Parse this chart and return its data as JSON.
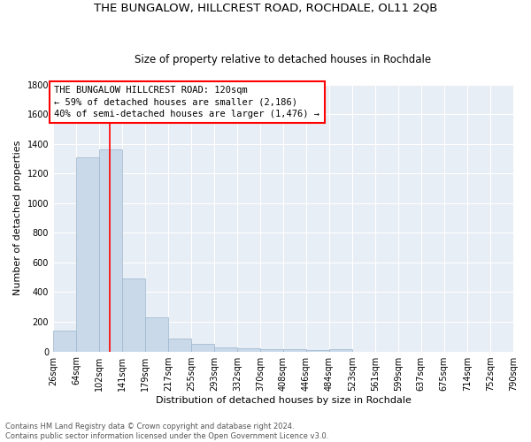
{
  "title": "THE BUNGALOW, HILLCREST ROAD, ROCHDALE, OL11 2QB",
  "subtitle": "Size of property relative to detached houses in Rochdale",
  "xlabel": "Distribution of detached houses by size in Rochdale",
  "ylabel": "Number of detached properties",
  "footnote1": "Contains HM Land Registry data © Crown copyright and database right 2024.",
  "footnote2": "Contains public sector information licensed under the Open Government Licence v3.0.",
  "bin_edges": [
    26,
    64,
    102,
    141,
    179,
    217,
    255,
    293,
    332,
    370,
    408,
    446,
    484,
    523,
    561,
    599,
    637,
    675,
    714,
    752,
    790
  ],
  "bar_heights": [
    140,
    1310,
    1360,
    490,
    230,
    85,
    50,
    30,
    20,
    15,
    15,
    10,
    15,
    0,
    0,
    0,
    0,
    0,
    0,
    0
  ],
  "bar_color": "#c9d9ea",
  "bar_edgecolor": "#9ab5cc",
  "red_line_x": 120,
  "annotation_text_line1": "THE BUNGALOW HILLCREST ROAD: 120sqm",
  "annotation_text_line2": "← 59% of detached houses are smaller (2,186)",
  "annotation_text_line3": "40% of semi-detached houses are larger (1,476) →",
  "ylim": [
    0,
    1800
  ],
  "yticks": [
    0,
    200,
    400,
    600,
    800,
    1000,
    1200,
    1400,
    1600,
    1800
  ],
  "background_color": "#e8eef5",
  "grid_color": "#ffffff",
  "title_fontsize": 9.5,
  "subtitle_fontsize": 8.5,
  "axis_label_fontsize": 8,
  "tick_fontsize": 7,
  "annotation_fontsize": 7.5,
  "footnote_fontsize": 6
}
